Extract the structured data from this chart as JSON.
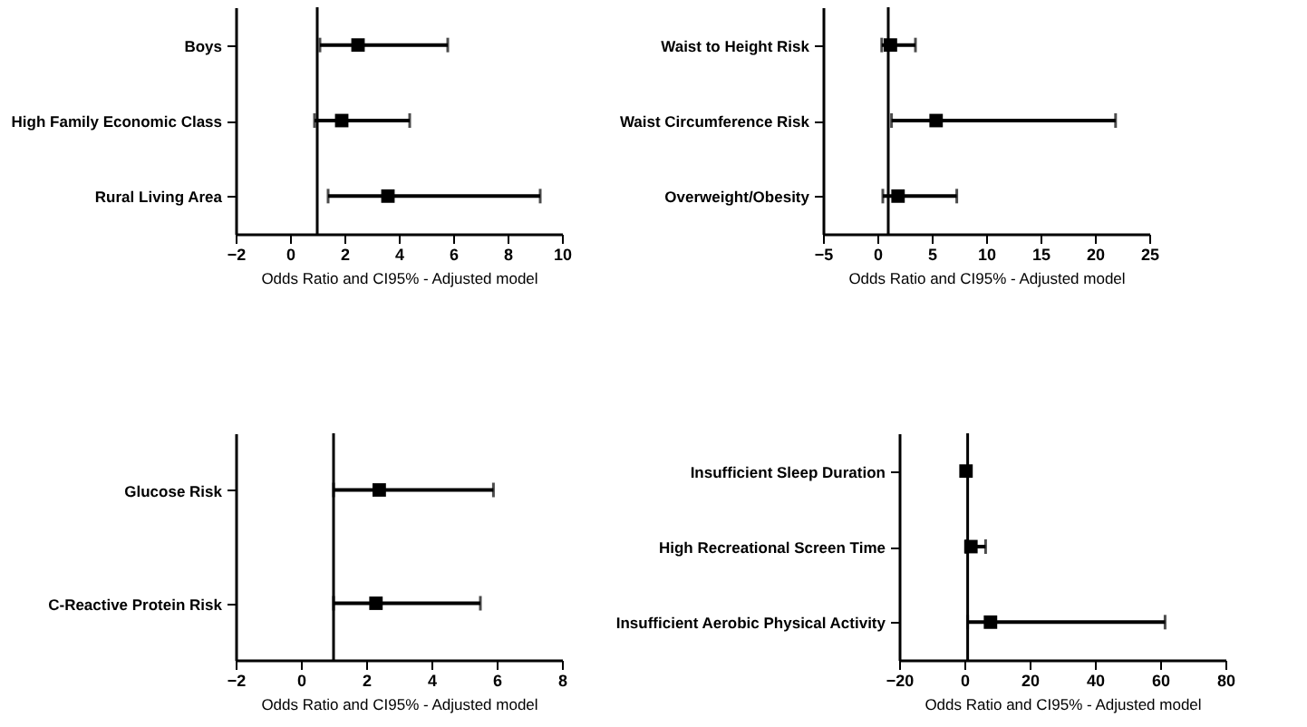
{
  "chart_data": [
    {
      "type": "scatter",
      "orientation": "horizontal",
      "categories": [
        "Boys",
        "High Family Economic Class",
        "Rural Living Area"
      ],
      "xlabel": "Odds Ratio and CI95% - Adjusted model",
      "xlim": [
        -2,
        10
      ],
      "xticks": [
        -2,
        0,
        2,
        4,
        6,
        8,
        10
      ],
      "marker": "square",
      "series": [
        {
          "color": "#000000",
          "values": [
            2.5,
            1.9,
            3.6
          ],
          "errors": [
            [
              1.1,
              5.8
            ],
            [
              0.9,
              4.4
            ],
            [
              1.4,
              9.2
            ]
          ]
        }
      ],
      "ref_lines": [
        {
          "axis": "x",
          "value": 1,
          "color": "#000000"
        }
      ]
    },
    {
      "type": "scatter",
      "orientation": "horizontal",
      "categories": [
        "Waist to Height Risk",
        "Waist Circumference Risk",
        "Overweight/Obesity"
      ],
      "xlabel": "Odds Ratio and CI95% - Adjusted model",
      "xlim": [
        -5,
        25
      ],
      "xticks": [
        -5,
        0,
        5,
        10,
        15,
        20,
        25
      ],
      "marker": "square",
      "series": [
        {
          "color": "#000000",
          "values": [
            1.2,
            5.4,
            1.9
          ],
          "errors": [
            [
              0.4,
              3.5
            ],
            [
              1.3,
              21.9
            ],
            [
              0.5,
              7.3
            ]
          ]
        }
      ],
      "ref_lines": [
        {
          "axis": "x",
          "value": 1,
          "color": "#000000"
        }
      ]
    },
    {
      "type": "scatter",
      "orientation": "horizontal",
      "categories": [
        "Glucose Risk",
        "C-Reactive Protein Risk"
      ],
      "xlabel": "Odds Ratio and CI95% - Adjusted model",
      "xlim": [
        -2,
        8
      ],
      "xticks": [
        -2,
        0,
        2,
        4,
        6,
        8
      ],
      "marker": "square",
      "series": [
        {
          "color": "#000000",
          "values": [
            2.4,
            2.3
          ],
          "errors": [
            [
              1.0,
              5.9
            ],
            [
              1.0,
              5.5
            ]
          ]
        }
      ],
      "ref_lines": [
        {
          "axis": "x",
          "value": 1,
          "color": "#000000"
        }
      ]
    },
    {
      "type": "scatter",
      "orientation": "horizontal",
      "categories": [
        "Insufficient Sleep Duration",
        "High Recreational Screen Time",
        "Insufficient Aerobic Physical Activity"
      ],
      "xlabel": "Odds Ratio and CI95% - Adjusted model",
      "xlim": [
        -20,
        80
      ],
      "xticks": [
        -20,
        0,
        20,
        40,
        60,
        80
      ],
      "marker": "square",
      "series": [
        {
          "color": "#000000",
          "values": [
            0.5,
            2.0,
            8.0
          ],
          "errors": [
            null,
            [
              0.5,
              6.5
            ],
            [
              1.0,
              61.5
            ]
          ]
        }
      ],
      "ref_lines": [
        {
          "axis": "x",
          "value": 1,
          "color": "#000000"
        }
      ]
    }
  ]
}
